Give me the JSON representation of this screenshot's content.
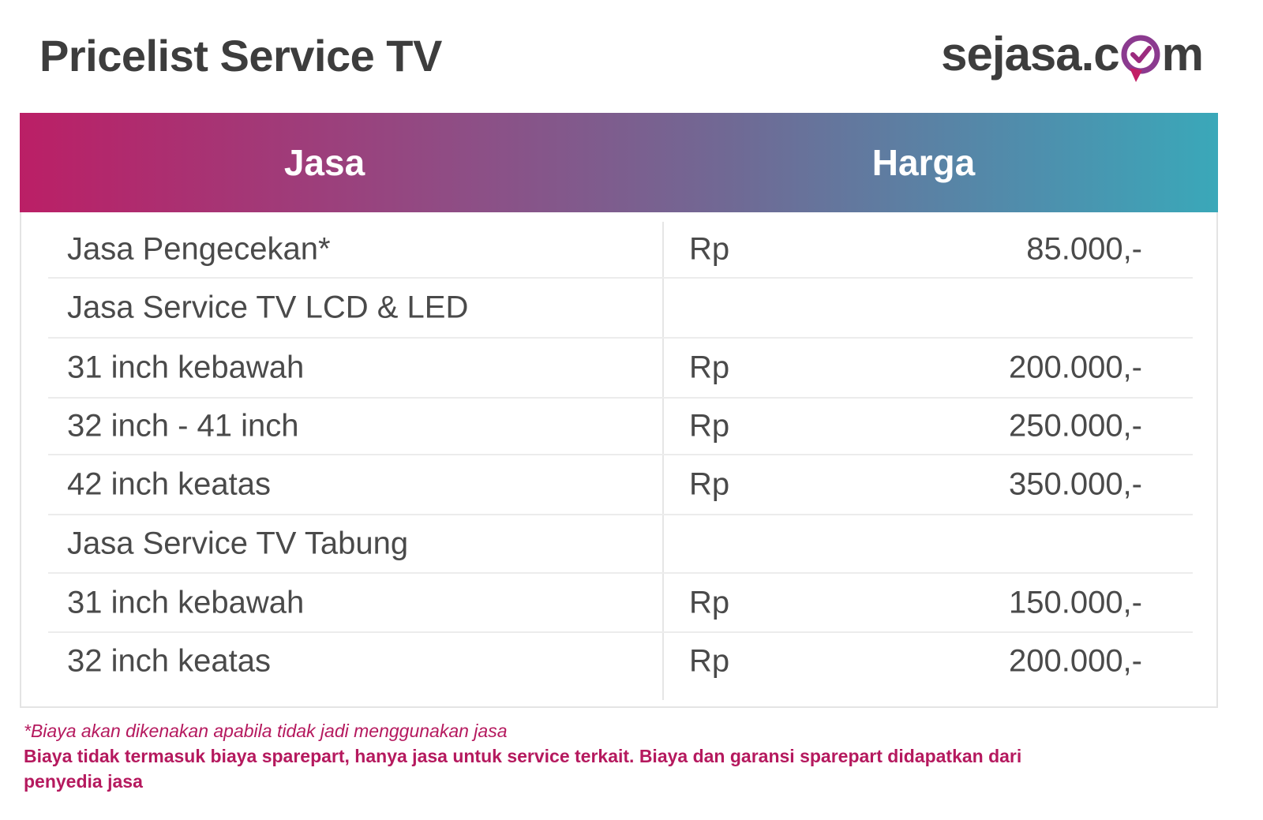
{
  "header": {
    "title": "Pricelist Service TV",
    "logo_before": "sejasa.c",
    "logo_after": "m",
    "logo_colors": {
      "ring": "#8b3a8f",
      "pin": "#c21f65",
      "check": "#9b2a7e"
    }
  },
  "table": {
    "columns": [
      "Jasa",
      "Harga"
    ],
    "rows": [
      {
        "name": "Jasa Pengecekan*",
        "currency": "Rp",
        "price": "85.000,-"
      },
      {
        "name": "Jasa Service TV LCD & LED",
        "currency": "",
        "price": ""
      },
      {
        "name": "31 inch kebawah",
        "currency": "Rp",
        "price": "200.000,-"
      },
      {
        "name": "32 inch - 41 inch",
        "currency": "Rp",
        "price": "250.000,-"
      },
      {
        "name": "42 inch keatas",
        "currency": "Rp",
        "price": "350.000,-"
      },
      {
        "name": "Jasa Service TV Tabung",
        "currency": "",
        "price": ""
      },
      {
        "name": "31 inch kebawah",
        "currency": "Rp",
        "price": "150.000,-"
      },
      {
        "name": "32 inch keatas",
        "currency": "Rp",
        "price": "200.000,-"
      }
    ]
  },
  "notes": {
    "note_1": "*Biaya akan dikenakan apabila tidak jadi menggunakan jasa",
    "note_2": "Biaya tidak termasuk biaya sparepart, hanya jasa untuk service terkait. Biaya dan garansi sparepart didapatkan dari penyedia jasa"
  },
  "colors": {
    "gradient_start": "#bb1f66",
    "gradient_end": "#3aa8b9",
    "note_text": "#b5195e",
    "title_text": "#3d3d3d"
  }
}
